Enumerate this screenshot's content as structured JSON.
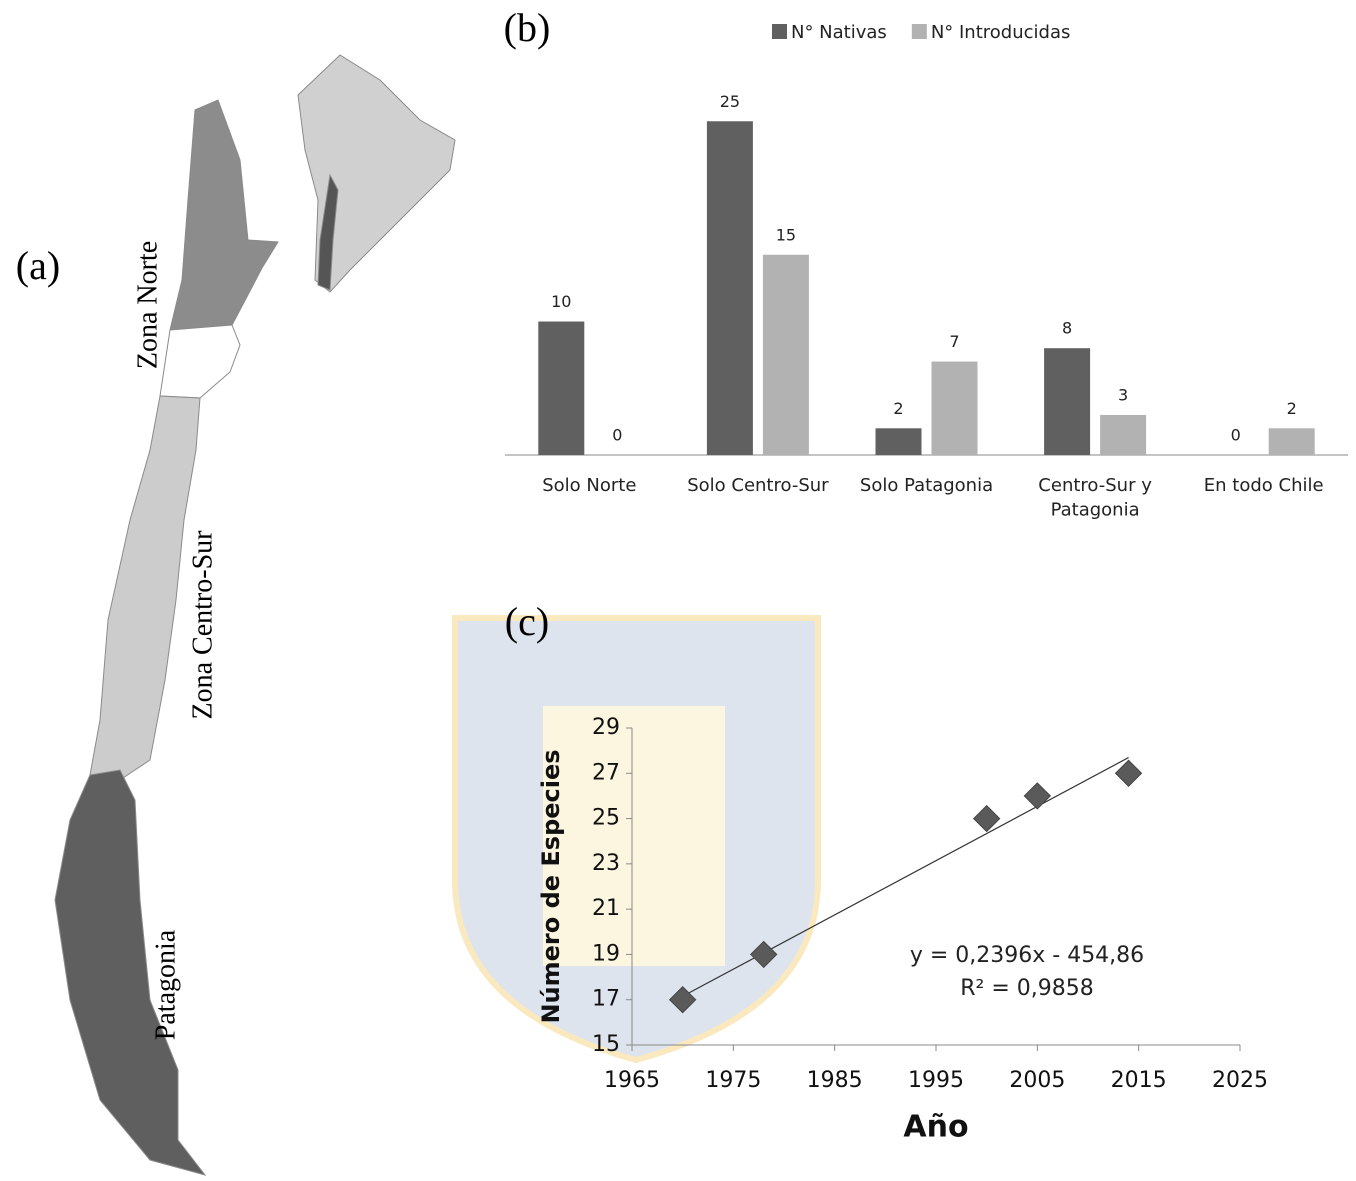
{
  "map": {
    "label": "(a)",
    "zones": [
      "Zona Norte",
      "Zona Centro-Sur",
      "Patagonia"
    ]
  },
  "chart_data": [
    {
      "type": "bar",
      "panel_label": "(b)",
      "categories": [
        "Solo Norte",
        "Solo Centro-Sur",
        "Solo Patagonia",
        "Centro-Sur y Patagonia",
        "En todo Chile"
      ],
      "series": [
        {
          "name": "N° Nativas",
          "color": "#606060",
          "values": [
            10,
            25,
            2,
            8,
            0
          ]
        },
        {
          "name": "N° Introducidas",
          "color": "#b2b2b2",
          "values": [
            0,
            15,
            7,
            3,
            2
          ]
        }
      ],
      "legend": "top"
    },
    {
      "type": "scatter",
      "panel_label": "(c)",
      "x_label": "Año",
      "y_label": "Número de Especies",
      "x": [
        1970,
        1978,
        2000,
        2005,
        2014
      ],
      "values": [
        17,
        19,
        25,
        26,
        27
      ],
      "color": "#5a5a5a",
      "xlim": [
        1965,
        2025
      ],
      "xticks": [
        1965,
        1975,
        1985,
        1995,
        2005,
        2015,
        2025
      ],
      "ylim": [
        15,
        29
      ],
      "yticks": [
        15,
        17,
        19,
        21,
        23,
        25,
        27,
        29
      ],
      "trendline": {
        "slope": 0.2396,
        "intercept": -454.86
      },
      "annotations": [
        "y = 0,2396x - 454,86",
        "R² = 0,9858"
      ]
    }
  ]
}
